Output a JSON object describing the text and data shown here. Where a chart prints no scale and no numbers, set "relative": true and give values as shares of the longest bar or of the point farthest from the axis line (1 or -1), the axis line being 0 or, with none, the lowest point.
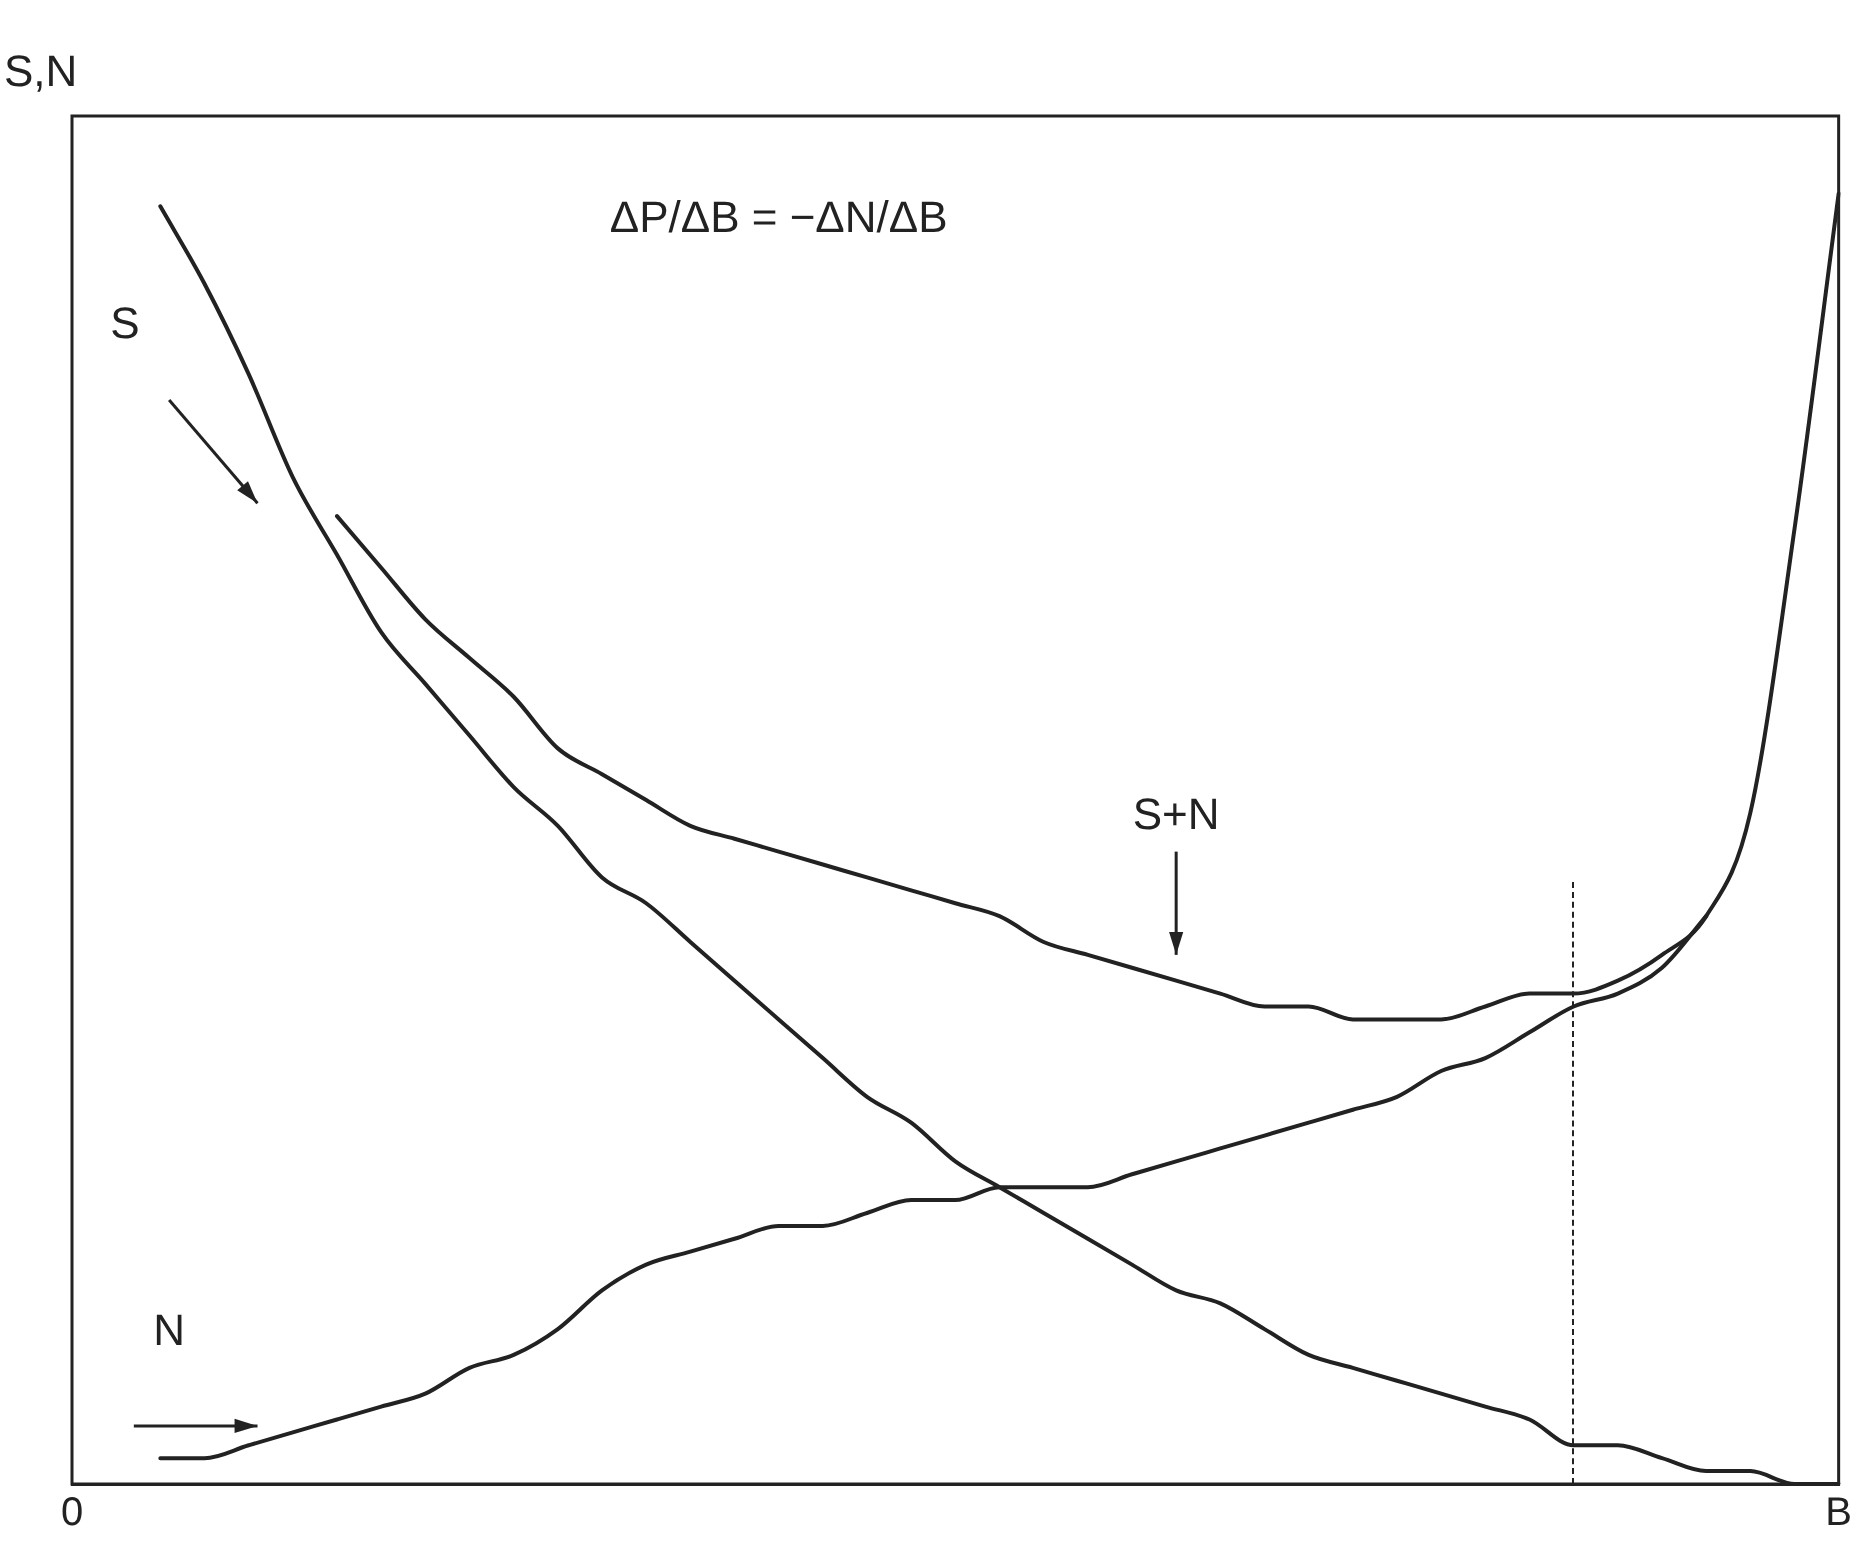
{
  "chart_data": {
    "type": "line",
    "relative": true,
    "ylabel": "S,N",
    "annotations": [
      "ΔP/ΔB = −ΔN/ΔB"
    ],
    "categories": [
      "0",
      null,
      null,
      null,
      null,
      null,
      null,
      null,
      null,
      null,
      null,
      null,
      null,
      null,
      null,
      null,
      null,
      null,
      null,
      null,
      null,
      null,
      null,
      null,
      null,
      null,
      null,
      null,
      null,
      null,
      null,
      null,
      null,
      null,
      null,
      null,
      null,
      null,
      null,
      null,
      "B"
    ],
    "grid": false,
    "legend": false,
    "marker": "none",
    "line_style": "solid",
    "series": [
      {
        "name": "S",
        "color": "#222222",
        "values": [
          null,
          null,
          0.99,
          0.93,
          0.86,
          0.78,
          0.72,
          0.66,
          0.62,
          0.58,
          0.54,
          0.51,
          0.47,
          0.45,
          0.42,
          0.39,
          0.36,
          0.33,
          0.3,
          0.28,
          0.25,
          0.23,
          0.21,
          0.19,
          0.17,
          0.15,
          0.14,
          0.12,
          0.1,
          0.09,
          0.08,
          0.07,
          0.06,
          0.05,
          0.03,
          0.03,
          0.02,
          0.01,
          0.01,
          0,
          0
        ]
      },
      {
        "name": "N",
        "color": "#222222",
        "values": [
          null,
          null,
          0.02,
          0.02,
          0.03,
          0.04,
          0.05,
          0.06,
          0.07,
          0.09,
          0.1,
          0.12,
          0.15,
          0.17,
          0.18,
          0.19,
          0.2,
          0.2,
          0.21,
          0.22,
          0.22,
          0.23,
          0.23,
          0.23,
          0.24,
          0.25,
          0.26,
          0.27,
          0.28,
          0.29,
          0.3,
          0.32,
          0.33,
          0.35,
          0.37,
          0.38,
          0.4,
          0.44,
          null,
          null,
          null
        ]
      },
      {
        "name": "S+N",
        "color": "#222222",
        "values": [
          null,
          null,
          null,
          null,
          null,
          null,
          0.75,
          0.71,
          0.67,
          0.64,
          0.61,
          0.57,
          0.55,
          0.53,
          0.51,
          0.5,
          0.49,
          0.48,
          0.47,
          0.46,
          0.45,
          0.44,
          0.42,
          0.41,
          0.4,
          0.39,
          0.38,
          0.37,
          0.37,
          0.36,
          0.36,
          0.36,
          0.37,
          0.38,
          0.38,
          0.39,
          0.41,
          0.44,
          0.52,
          0.74,
          1
        ]
      }
    ]
  }
}
